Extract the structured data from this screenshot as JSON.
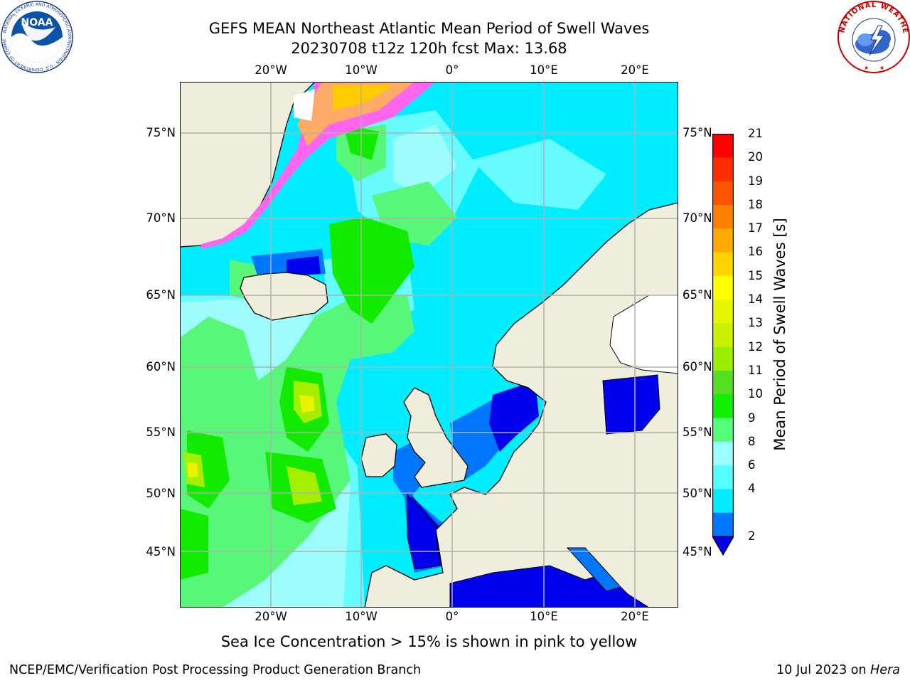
{
  "header": {
    "title_line1": "GEFS MEAN Northeast Atlantic Mean Period of Swell Waves",
    "title_line2": "20230708 t12z 120h fcst   Max: 13.68"
  },
  "logos": {
    "left": {
      "icon": "noaa-logo-icon",
      "text": "NATIONAL OCEANIC AND ATMOSPHERIC ADMINISTRATION · U.S. DEPARTMENT OF COMMERCE",
      "short": "NOAA"
    },
    "right": {
      "icon": "nws-logo-icon",
      "text": "NATIONAL WEATHER SERVICE"
    }
  },
  "map": {
    "lon_ticks": [
      "20°W",
      "10°W",
      "0°",
      "10°E",
      "20°E"
    ],
    "lat_ticks": [
      "75°N",
      "70°N",
      "65°N",
      "60°N",
      "55°N",
      "50°N",
      "45°N"
    ],
    "colors": {
      "land": "#efeddb",
      "grid": "#b0b0b0",
      "coast": "#000000"
    }
  },
  "colorbar": {
    "label": "Mean Period of Swell Waves [s]",
    "ticks": [
      "21",
      "20",
      "19",
      "18",
      "17",
      "16",
      "15",
      "14",
      "13",
      "12",
      "11",
      "10",
      "9",
      "8",
      "6",
      "4",
      "2"
    ],
    "colors": [
      "#ff0000",
      "#ff2d00",
      "#ff5500",
      "#ff7f00",
      "#ffaa00",
      "#ffd400",
      "#ffff00",
      "#e6f500",
      "#c8f000",
      "#99ee00",
      "#55dd22",
      "#11ee00",
      "#55ff77",
      "#99ffff",
      "#55ffff",
      "#00eeff",
      "#0077ff",
      "#0000ee"
    ]
  },
  "subtitle": "Sea Ice Concentration > 15% is shown in pink to yellow",
  "footer": {
    "left": "NCEP/EMC/Verification Post Processing Product Generation Branch",
    "right_prefix": "10 Jul 2023 on ",
    "right_host": "Hera"
  }
}
